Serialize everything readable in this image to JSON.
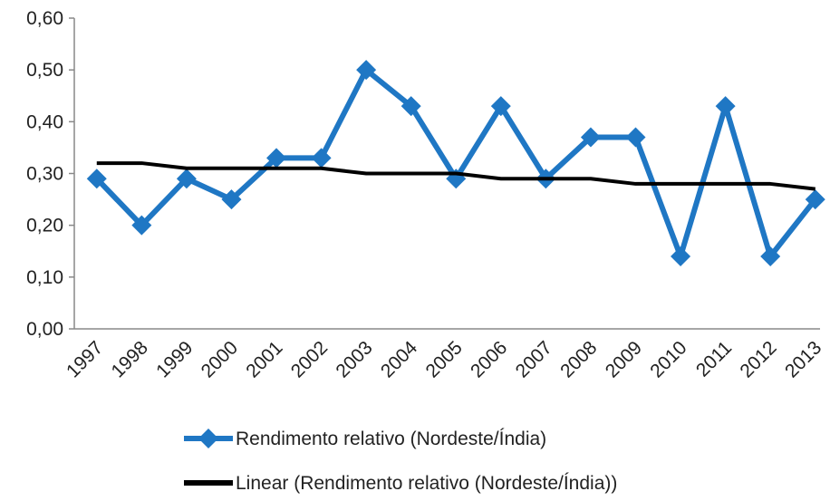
{
  "chart_data": {
    "type": "line",
    "categories": [
      "1997",
      "1998",
      "1999",
      "2000",
      "2001",
      "2002",
      "2003",
      "2004",
      "2005",
      "2006",
      "2007",
      "2008",
      "2009",
      "2010",
      "2011",
      "2012",
      "2013"
    ],
    "series": [
      {
        "name": "Rendimento relativo (Nordeste/Índia)",
        "color": "#1f77c4",
        "marker": "diamond",
        "values": [
          0.29,
          0.2,
          0.29,
          0.25,
          0.33,
          0.33,
          0.5,
          0.43,
          0.29,
          0.43,
          0.29,
          0.37,
          0.37,
          0.14,
          0.43,
          0.14,
          0.25
        ]
      },
      {
        "name": "Linear (Rendimento relativo (Nordeste/Índia))",
        "color": "#000000",
        "marker": "none",
        "values": [
          0.32,
          0.32,
          0.31,
          0.31,
          0.31,
          0.31,
          0.3,
          0.3,
          0.3,
          0.29,
          0.29,
          0.29,
          0.28,
          0.28,
          0.28,
          0.28,
          0.27
        ]
      }
    ],
    "ylim": [
      0,
      0.6
    ],
    "yticks": [
      {
        "value": 0,
        "label": "0,00"
      },
      {
        "value": 0.1,
        "label": "0,10"
      },
      {
        "value": 0.2,
        "label": "0,20"
      },
      {
        "value": 0.3,
        "label": "0,30"
      },
      {
        "value": 0.4,
        "label": "0,40"
      },
      {
        "value": 0.5,
        "label": "0,50"
      },
      {
        "value": 0.6,
        "label": "0,60"
      }
    ],
    "grid": false,
    "legend": "bottom"
  }
}
